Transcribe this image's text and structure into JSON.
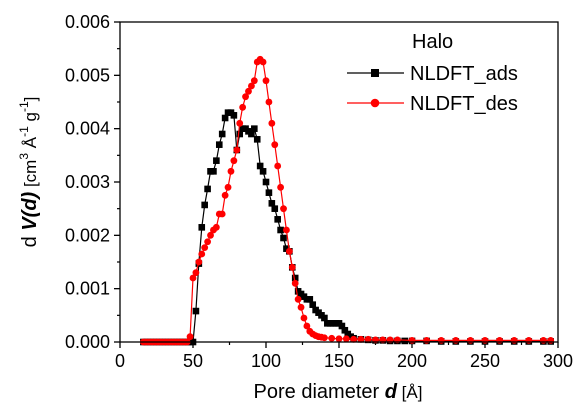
{
  "chart_data": {
    "type": "line",
    "xlabel": {
      "main": "Pore diameter ",
      "var": "d",
      "unit": " [Å]"
    },
    "ylabel": {
      "pre": "d ",
      "V": "V",
      "open": "(",
      "d": "d",
      "close": ")",
      "unit_pre": " [cm",
      "unit_sup3": "3",
      "unit_A": " Å",
      "unit_supm1": "-1",
      "unit_g": " g",
      "unit_supm1b": "-1",
      "unit_post": "]"
    },
    "xlim": [
      0,
      300
    ],
    "ylim": [
      0,
      0.006
    ],
    "xticks": [
      0,
      50,
      100,
      150,
      200,
      250,
      300
    ],
    "xtick_labels": [
      "0",
      "50",
      "100",
      "150",
      "200",
      "250",
      "300"
    ],
    "yticks": [
      0,
      0.001,
      0.002,
      0.003,
      0.004,
      0.005,
      0.006
    ],
    "ytick_labels": [
      "0.000",
      "0.001",
      "0.002",
      "0.003",
      "0.004",
      "0.005",
      "0.006"
    ],
    "legend": {
      "title": "Halo",
      "position": "top-right"
    },
    "series": [
      {
        "name": "NLDFT_ads",
        "color": "#000000",
        "marker": "square",
        "x": [
          16,
          18,
          20,
          22,
          24,
          26,
          28,
          30,
          32,
          34,
          36,
          38,
          40,
          42,
          44,
          46,
          48,
          50,
          52,
          54,
          56,
          58,
          60,
          62,
          64,
          66,
          68,
          70,
          72,
          74,
          76,
          78,
          80,
          82,
          84,
          86,
          88,
          90,
          92,
          94,
          96,
          98,
          100,
          102,
          104,
          106,
          108,
          110,
          112,
          114,
          116,
          118,
          120,
          122,
          124,
          126,
          128,
          130,
          132,
          134,
          136,
          138,
          140,
          142,
          144,
          146,
          148,
          150,
          152,
          154,
          156,
          158,
          160,
          165,
          170,
          175,
          180,
          185,
          190,
          195,
          200,
          210,
          220,
          230,
          240,
          250,
          260,
          270,
          280,
          290,
          295
        ],
        "y": [
          0,
          0,
          0,
          0,
          0,
          0,
          0,
          0,
          0,
          0,
          0,
          0,
          0,
          0,
          0,
          0,
          0,
          0,
          0.00058,
          0.00147,
          0.00215,
          0.00257,
          0.00287,
          0.0032,
          0.0032,
          0.0034,
          0.0037,
          0.0039,
          0.0042,
          0.0043,
          0.0043,
          0.00425,
          0.0036,
          0.0039,
          0.004,
          0.004,
          0.00395,
          0.0039,
          0.004,
          0.0038,
          0.0033,
          0.0032,
          0.003,
          0.0028,
          0.0026,
          0.0025,
          0.0023,
          0.0021,
          0.00195,
          0.00175,
          0.0017,
          0.0014,
          0.0012,
          0.00095,
          0.0009,
          0.00085,
          0.0008,
          0.0008,
          0.0007,
          0.0006,
          0.00055,
          0.0005,
          0.00045,
          0.00035,
          0.00035,
          0.00035,
          0.00035,
          0.00035,
          0.0003,
          0.00022,
          0.00015,
          0.0001,
          7e-05,
          5e-05,
          4e-05,
          3e-05,
          3e-05,
          2e-05,
          2e-05,
          2e-05,
          2e-05,
          2e-05,
          1e-05,
          1e-05,
          1e-05,
          1e-05,
          1e-05,
          1e-05,
          1e-05,
          1e-05,
          1e-05
        ]
      },
      {
        "name": "NLDFT_des",
        "color": "#ff0000",
        "marker": "circle",
        "x": [
          16,
          18,
          20,
          22,
          24,
          26,
          28,
          30,
          32,
          34,
          36,
          38,
          40,
          42,
          44,
          46,
          48,
          50,
          52,
          54,
          56,
          58,
          60,
          62,
          64,
          66,
          68,
          70,
          72,
          74,
          76,
          78,
          80,
          82,
          84,
          86,
          88,
          90,
          92,
          94,
          96,
          98,
          100,
          102,
          104,
          106,
          108,
          110,
          112,
          114,
          116,
          118,
          120,
          122,
          124,
          126,
          128,
          130,
          132,
          134,
          136,
          138,
          140,
          145,
          150,
          155,
          160,
          165,
          170,
          175,
          180,
          185,
          190,
          200,
          210,
          220,
          230,
          240,
          250,
          260,
          270,
          280,
          290,
          295
        ],
        "y": [
          0,
          0,
          0,
          0,
          0,
          0,
          0,
          0,
          0,
          0,
          0,
          0,
          0,
          0,
          0,
          0,
          0.0001,
          0.0012,
          0.0013,
          0.0015,
          0.00165,
          0.00177,
          0.00188,
          0.002,
          0.0021,
          0.00215,
          0.0024,
          0.0024,
          0.00275,
          0.0029,
          0.0032,
          0.0034,
          0.0036,
          0.0041,
          0.0044,
          0.0046,
          0.0047,
          0.0048,
          0.0049,
          0.00525,
          0.0053,
          0.00525,
          0.0049,
          0.0045,
          0.0041,
          0.0037,
          0.0033,
          0.0029,
          0.0025,
          0.0021,
          0.0017,
          0.0014,
          0.0011,
          0.0008,
          0.00065,
          0.00045,
          0.0003,
          0.0002,
          0.00015,
          0.00012,
          0.0001,
          9e-05,
          8e-05,
          7e-05,
          6e-05,
          6e-05,
          5e-05,
          5e-05,
          5e-05,
          4e-05,
          4e-05,
          4e-05,
          4e-05,
          3e-05,
          3e-05,
          3e-05,
          3e-05,
          3e-05,
          3e-05,
          3e-05,
          3e-05,
          3e-05,
          3e-05,
          3e-05
        ]
      }
    ]
  }
}
